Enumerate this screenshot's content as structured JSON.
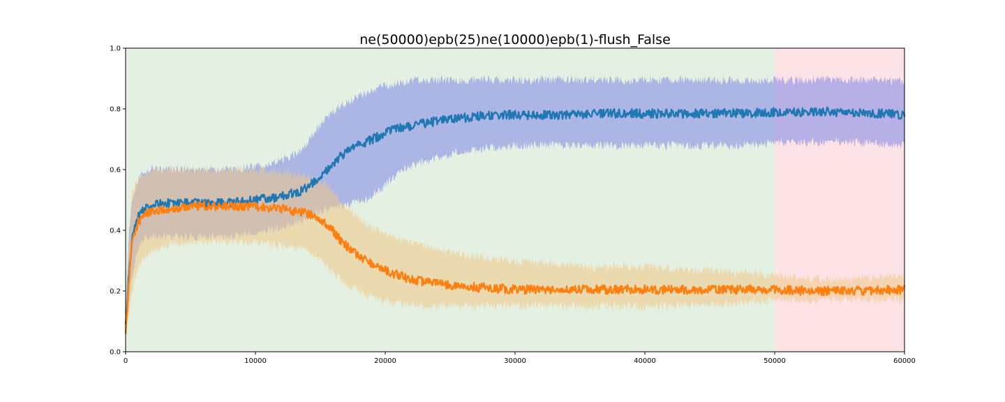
{
  "chart_data": {
    "type": "line",
    "title": "ne(50000)epb(25)ne(10000)epb(1)-flush_False",
    "xlabel": "",
    "ylabel": "",
    "xlim": [
      0,
      60000
    ],
    "ylim": [
      0,
      1
    ],
    "xticks": [
      0,
      10000,
      20000,
      30000,
      40000,
      50000,
      60000
    ],
    "yticks": [
      0.0,
      0.2,
      0.4,
      0.6,
      0.8,
      1.0
    ],
    "xtick_labels": [
      "0",
      "10000",
      "20000",
      "30000",
      "40000",
      "50000",
      "60000"
    ],
    "ytick_labels": [
      "0.0",
      "0.2",
      "0.4",
      "0.6",
      "0.8",
      "1.0"
    ],
    "grid": false,
    "legend": null,
    "regions": [
      {
        "x_start": 0,
        "x_end": 50000,
        "color": "#e4f0e1"
      },
      {
        "x_start": 50000,
        "x_end": 60000,
        "color": "#fde3e6"
      }
    ],
    "series": [
      {
        "color": "#1f77b4",
        "band_color": "#7b87e8",
        "x": [
          0,
          250,
          500,
          1000,
          1500,
          2000,
          3000,
          5000,
          8000,
          10000,
          12000,
          13500,
          14500,
          15500,
          16500,
          17500,
          18500,
          19500,
          20500,
          21500,
          22500,
          24000,
          26000,
          28000,
          30000,
          33000,
          36000,
          40000,
          44000,
          48000,
          50000,
          53000,
          56000,
          60000
        ],
        "y": [
          0.08,
          0.25,
          0.38,
          0.45,
          0.47,
          0.48,
          0.49,
          0.49,
          0.49,
          0.5,
          0.51,
          0.53,
          0.56,
          0.6,
          0.64,
          0.67,
          0.69,
          0.71,
          0.73,
          0.74,
          0.75,
          0.76,
          0.77,
          0.78,
          0.78,
          0.78,
          0.785,
          0.785,
          0.785,
          0.785,
          0.79,
          0.79,
          0.79,
          0.78
        ],
        "lower": [
          0.05,
          0.15,
          0.25,
          0.35,
          0.37,
          0.38,
          0.38,
          0.38,
          0.38,
          0.39,
          0.41,
          0.43,
          0.45,
          0.47,
          0.48,
          0.49,
          0.5,
          0.53,
          0.57,
          0.6,
          0.62,
          0.64,
          0.66,
          0.67,
          0.68,
          0.68,
          0.68,
          0.68,
          0.68,
          0.68,
          0.69,
          0.69,
          0.69,
          0.68
        ],
        "upper": [
          0.12,
          0.38,
          0.5,
          0.57,
          0.59,
          0.6,
          0.6,
          0.6,
          0.6,
          0.61,
          0.63,
          0.66,
          0.72,
          0.77,
          0.81,
          0.83,
          0.85,
          0.87,
          0.88,
          0.89,
          0.895,
          0.895,
          0.895,
          0.895,
          0.895,
          0.895,
          0.895,
          0.895,
          0.895,
          0.895,
          0.895,
          0.895,
          0.895,
          0.89
        ]
      },
      {
        "color": "#ff7f0e",
        "band_color": "#f0c987",
        "x": [
          0,
          250,
          500,
          1000,
          1500,
          2000,
          3000,
          5000,
          8000,
          10000,
          12000,
          13500,
          14500,
          15500,
          16500,
          17500,
          18500,
          19500,
          20500,
          21500,
          22500,
          24000,
          26000,
          28000,
          30000,
          33000,
          36000,
          40000,
          44000,
          48000,
          50000,
          53000,
          56000,
          60000
        ],
        "y": [
          0.07,
          0.23,
          0.36,
          0.43,
          0.45,
          0.46,
          0.47,
          0.48,
          0.48,
          0.48,
          0.47,
          0.46,
          0.45,
          0.42,
          0.37,
          0.33,
          0.3,
          0.28,
          0.26,
          0.245,
          0.235,
          0.225,
          0.215,
          0.21,
          0.205,
          0.205,
          0.205,
          0.205,
          0.205,
          0.205,
          0.205,
          0.2,
          0.2,
          0.205
        ],
        "lower": [
          0.05,
          0.12,
          0.2,
          0.28,
          0.31,
          0.33,
          0.35,
          0.36,
          0.36,
          0.36,
          0.35,
          0.34,
          0.32,
          0.28,
          0.24,
          0.21,
          0.19,
          0.17,
          0.16,
          0.155,
          0.15,
          0.15,
          0.15,
          0.15,
          0.15,
          0.15,
          0.15,
          0.15,
          0.155,
          0.16,
          0.17,
          0.17,
          0.17,
          0.17
        ],
        "upper": [
          0.1,
          0.35,
          0.52,
          0.57,
          0.59,
          0.6,
          0.6,
          0.6,
          0.6,
          0.6,
          0.59,
          0.58,
          0.57,
          0.55,
          0.5,
          0.46,
          0.42,
          0.4,
          0.38,
          0.37,
          0.35,
          0.34,
          0.32,
          0.31,
          0.3,
          0.29,
          0.28,
          0.28,
          0.27,
          0.26,
          0.25,
          0.24,
          0.24,
          0.25
        ]
      }
    ]
  }
}
